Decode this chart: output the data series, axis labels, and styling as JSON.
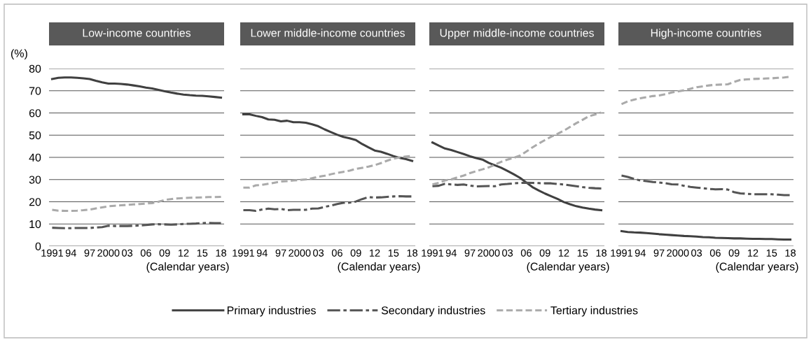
{
  "chart_data": [
    {
      "type": "line",
      "title": "Low-income countries",
      "ylabel": "(%)",
      "xlabel": "(Calendar years)",
      "legend": "bottom",
      "grid": "y",
      "x": [
        1991,
        1992,
        1993,
        1994,
        1995,
        1996,
        1997,
        1998,
        1999,
        2000,
        2001,
        2002,
        2003,
        2004,
        2005,
        2006,
        2007,
        2008,
        2009,
        2010,
        2011,
        2012,
        2013,
        2014,
        2015,
        2016,
        2017,
        2018
      ],
      "xlim": [
        1990.5,
        2018.5
      ],
      "xticks": [
        {
          "value": 1991,
          "label": "1991"
        },
        {
          "value": 1994,
          "label": "94"
        },
        {
          "value": 1997,
          "label": "97"
        },
        {
          "value": 2000,
          "label": "2000"
        },
        {
          "value": 2003,
          "label": "03"
        },
        {
          "value": 2006,
          "label": "06"
        },
        {
          "value": 2009,
          "label": "09"
        },
        {
          "value": 2012,
          "label": "12"
        },
        {
          "value": 2015,
          "label": "15"
        },
        {
          "value": 2018,
          "label": "18"
        }
      ],
      "ylim": [
        0,
        80
      ],
      "yticks": [
        0,
        10,
        20,
        30,
        40,
        50,
        60,
        70,
        80
      ],
      "series": [
        {
          "name": "Primary industries",
          "color": "#404040",
          "line_style": "solid",
          "values": [
            75.3,
            75.8,
            76,
            76,
            75.8,
            75.6,
            75.3,
            74.5,
            73.8,
            73.2,
            73.2,
            73.1,
            72.8,
            72.4,
            72,
            71.4,
            71,
            70.4,
            69.8,
            69.2,
            68.7,
            68.3,
            68,
            67.8,
            67.7,
            67.5,
            67.2,
            66.9
          ]
        },
        {
          "name": "Secondary industries",
          "color": "#555555",
          "line_style": "dashdot",
          "values": [
            8.3,
            8.2,
            8.1,
            8.1,
            8.2,
            8.2,
            8.2,
            8.4,
            8.6,
            9.2,
            9.1,
            9.1,
            9.1,
            9.2,
            9.3,
            9.5,
            9.8,
            9.9,
            9.8,
            9.7,
            9.8,
            10,
            10.1,
            10.2,
            10.4,
            10.5,
            10.4,
            10.4
          ]
        },
        {
          "name": "Tertiary industries",
          "color": "#aaaaaa",
          "line_style": "dashed",
          "values": [
            16.4,
            16.0,
            15.9,
            15.9,
            16.0,
            16.2,
            16.5,
            17.0,
            17.5,
            18.0,
            18.2,
            18.4,
            18.6,
            18.8,
            19.0,
            19.2,
            19.4,
            20.0,
            20.8,
            21.2,
            21.5,
            21.7,
            21.8,
            21.9,
            22.0,
            22.1,
            22.1,
            22.2
          ]
        }
      ]
    },
    {
      "type": "line",
      "title": "Lower middle-income countries",
      "xlabel": "(Calendar years)",
      "grid": "y",
      "tick_labels": "x",
      "x": [
        1991,
        1992,
        1993,
        1994,
        1995,
        1996,
        1997,
        1998,
        1999,
        2000,
        2001,
        2002,
        2003,
        2004,
        2005,
        2006,
        2007,
        2008,
        2009,
        2010,
        2011,
        2012,
        2013,
        2014,
        2015,
        2016,
        2017,
        2018
      ],
      "xlim": [
        1990.5,
        2018.5
      ],
      "xticks": [
        {
          "value": 1991,
          "label": "1991"
        },
        {
          "value": 1994,
          "label": "94"
        },
        {
          "value": 1997,
          "label": "97"
        },
        {
          "value": 2000,
          "label": "2000"
        },
        {
          "value": 2003,
          "label": "03"
        },
        {
          "value": 2006,
          "label": "06"
        },
        {
          "value": 2009,
          "label": "09"
        },
        {
          "value": 2012,
          "label": "12"
        },
        {
          "value": 2015,
          "label": "15"
        },
        {
          "value": 2018,
          "label": "18"
        }
      ],
      "ylim": [
        0,
        80
      ],
      "yticks": [
        0,
        10,
        20,
        30,
        40,
        50,
        60,
        70,
        80
      ],
      "series": [
        {
          "name": "Primary industries",
          "color": "#404040",
          "line_style": "solid",
          "values": [
            59.4,
            59.4,
            58.7,
            58.1,
            57.1,
            56.9,
            56.2,
            56.5,
            55.8,
            55.8,
            55.6,
            54.9,
            54.0,
            52.6,
            51.4,
            50.2,
            49.2,
            48.6,
            47.8,
            46.0,
            44.5,
            43.1,
            42.5,
            41.6,
            40.6,
            39.8,
            39.2,
            38.4
          ]
        },
        {
          "name": "Secondary industries",
          "color": "#555555",
          "line_style": "dashdot",
          "values": [
            16.2,
            16.2,
            15.9,
            16.5,
            16.9,
            16.6,
            16.8,
            16.2,
            16.4,
            16.4,
            16.4,
            16.9,
            17.0,
            17.7,
            18.3,
            19.0,
            19.5,
            19.6,
            20.1,
            21.2,
            22.1,
            21.9,
            22.0,
            22.2,
            22.4,
            22.5,
            22.4,
            22.4
          ]
        },
        {
          "name": "Tertiary industries",
          "color": "#aaaaaa",
          "line_style": "dashed",
          "values": [
            26.4,
            26.4,
            27.4,
            27.6,
            28.1,
            28.6,
            29.1,
            29.3,
            29.6,
            29.8,
            30.1,
            30.6,
            31.3,
            31.7,
            32.4,
            33.0,
            33.5,
            34.0,
            34.8,
            35.3,
            35.8,
            36.5,
            37.4,
            38.5,
            39.4,
            40.0,
            40.4,
            40.6
          ]
        }
      ]
    },
    {
      "type": "line",
      "title": "Upper middle-income countries",
      "xlabel": "(Calendar years)",
      "grid": "y",
      "tick_labels": "x",
      "x": [
        1991,
        1992,
        1993,
        1994,
        1995,
        1996,
        1997,
        1998,
        1999,
        2000,
        2001,
        2002,
        2003,
        2004,
        2005,
        2006,
        2007,
        2008,
        2009,
        2010,
        2011,
        2012,
        2013,
        2014,
        2015,
        2016,
        2017,
        2018
      ],
      "xlim": [
        1990.5,
        2018.5
      ],
      "xticks": [
        {
          "value": 1991,
          "label": "1991"
        },
        {
          "value": 1994,
          "label": "94"
        },
        {
          "value": 1997,
          "label": "97"
        },
        {
          "value": 2000,
          "label": "2000"
        },
        {
          "value": 2003,
          "label": "03"
        },
        {
          "value": 2006,
          "label": "06"
        },
        {
          "value": 2009,
          "label": "09"
        },
        {
          "value": 2012,
          "label": "12"
        },
        {
          "value": 2015,
          "label": "15"
        },
        {
          "value": 2018,
          "label": "18"
        }
      ],
      "ylim": [
        0,
        80
      ],
      "yticks": [
        0,
        10,
        20,
        30,
        40,
        50,
        60,
        70,
        80
      ],
      "series": [
        {
          "name": "Primary industries",
          "color": "#404040",
          "line_style": "solid",
          "values": [
            46.7,
            45.3,
            44.0,
            43.3,
            42.4,
            41.5,
            40.5,
            39.7,
            39.0,
            37.5,
            36.4,
            35.3,
            33.9,
            32.4,
            30.8,
            28.7,
            26.6,
            25.1,
            23.7,
            22.5,
            21.3,
            19.9,
            18.9,
            18.0,
            17.4,
            16.9,
            16.5,
            16.2
          ]
        },
        {
          "name": "Secondary industries",
          "color": "#555555",
          "line_style": "dashdot",
          "values": [
            27.0,
            27.2,
            28.1,
            27.8,
            27.6,
            27.8,
            27.3,
            26.9,
            27.0,
            27.1,
            27.0,
            27.8,
            28.0,
            28.3,
            28.5,
            28.6,
            28.5,
            28.4,
            28.3,
            28.3,
            28.0,
            27.8,
            27.4,
            27.0,
            26.6,
            26.3,
            26.1,
            26.0
          ]
        },
        {
          "name": "Tertiary industries",
          "color": "#aaaaaa",
          "line_style": "dashed",
          "values": [
            27.8,
            28.5,
            29.6,
            30.1,
            31.0,
            31.8,
            32.9,
            33.8,
            34.6,
            35.5,
            36.7,
            38.0,
            39.0,
            39.8,
            40.8,
            42.6,
            44.5,
            46.2,
            47.8,
            49.3,
            50.6,
            52.0,
            53.7,
            55.4,
            56.9,
            58.5,
            59.3,
            60.2
          ]
        }
      ]
    },
    {
      "type": "line",
      "title": "High-income countries",
      "xlabel": "(Calendar years)",
      "grid": "y",
      "tick_labels": "x",
      "x": [
        1991,
        1992,
        1993,
        1994,
        1995,
        1996,
        1997,
        1998,
        1999,
        2000,
        2001,
        2002,
        2003,
        2004,
        2005,
        2006,
        2007,
        2008,
        2009,
        2010,
        2011,
        2012,
        2013,
        2014,
        2015,
        2016,
        2017,
        2018
      ],
      "xlim": [
        1990.5,
        2018.5
      ],
      "xticks": [
        {
          "value": 1991,
          "label": "1991"
        },
        {
          "value": 1994,
          "label": "94"
        },
        {
          "value": 1997,
          "label": "97"
        },
        {
          "value": 2000,
          "label": "2000"
        },
        {
          "value": 2003,
          "label": "03"
        },
        {
          "value": 2006,
          "label": "06"
        },
        {
          "value": 2009,
          "label": "09"
        },
        {
          "value": 2012,
          "label": "12"
        },
        {
          "value": 2015,
          "label": "15"
        },
        {
          "value": 2018,
          "label": "18"
        }
      ],
      "ylim": [
        0,
        80
      ],
      "yticks": [
        0,
        10,
        20,
        30,
        40,
        50,
        60,
        70,
        80
      ],
      "series": [
        {
          "name": "Primary industries",
          "color": "#404040",
          "line_style": "solid",
          "values": [
            6.8,
            6.4,
            6.2,
            6.1,
            5.9,
            5.7,
            5.4,
            5.2,
            5.0,
            4.8,
            4.6,
            4.5,
            4.3,
            4.1,
            4.0,
            3.8,
            3.7,
            3.6,
            3.5,
            3.5,
            3.4,
            3.3,
            3.3,
            3.2,
            3.2,
            3.1,
            3.0,
            3.0
          ]
        },
        {
          "name": "Secondary industries",
          "color": "#555555",
          "line_style": "dashdot",
          "values": [
            31.8,
            31.2,
            30.3,
            29.6,
            29.3,
            28.9,
            28.7,
            28.4,
            27.9,
            27.8,
            27.2,
            26.7,
            26.4,
            26.1,
            25.8,
            25.6,
            25.7,
            25.5,
            24.3,
            23.8,
            23.6,
            23.4,
            23.4,
            23.4,
            23.4,
            23.2,
            23.0,
            23.0
          ]
        },
        {
          "name": "Tertiary industries",
          "color": "#aaaaaa",
          "line_style": "dashed",
          "values": [
            64.0,
            65.2,
            66.0,
            66.6,
            67.1,
            67.6,
            67.9,
            68.4,
            69.2,
            69.7,
            70.2,
            70.9,
            71.6,
            72.0,
            72.4,
            72.7,
            72.8,
            72.9,
            74.0,
            74.9,
            75.1,
            75.3,
            75.4,
            75.5,
            75.6,
            75.8,
            76.0,
            76.3
          ]
        }
      ]
    }
  ]
}
